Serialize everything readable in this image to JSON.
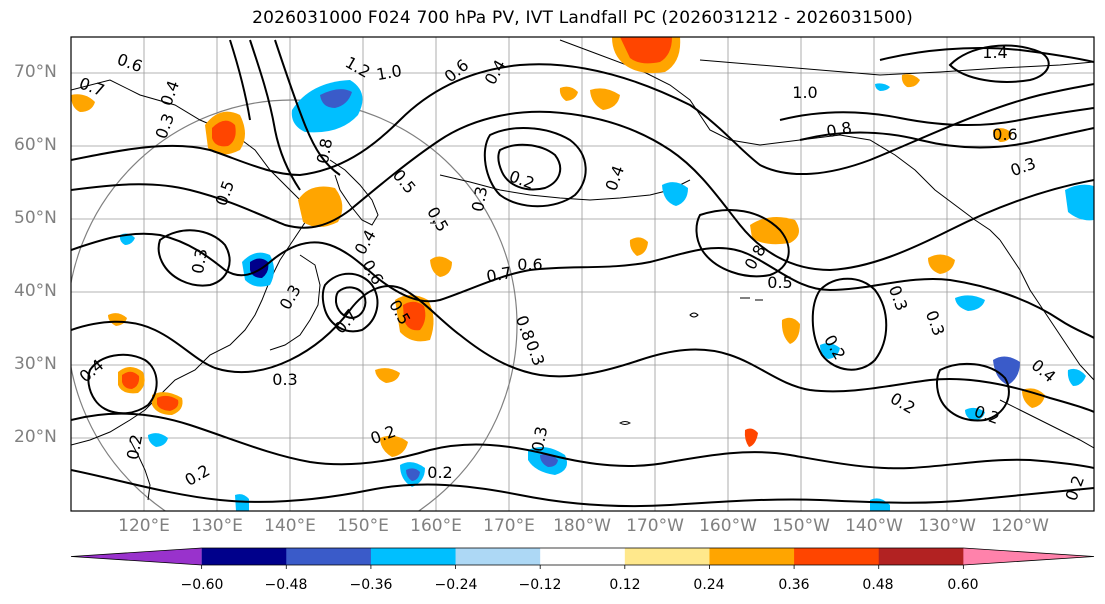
{
  "title": "2026031000 F024 700 hPa PV, IVT Landfall PC (2026031212 - 2026031500)",
  "lat_labels": [
    "70°N",
    "60°N",
    "50°N",
    "40°N",
    "30°N",
    "20°N"
  ],
  "lon_labels": [
    "120°E",
    "130°E",
    "140°E",
    "150°E",
    "160°E",
    "170°E",
    "180°W",
    "170°W",
    "160°W",
    "150°W",
    "140°W",
    "130°W",
    "120°W"
  ],
  "colorbar": {
    "tick_labels": [
      "−0.60",
      "−0.48",
      "−0.36",
      "−0.24",
      "−0.12",
      "0.12",
      "0.24",
      "0.36",
      "0.48",
      "0.60"
    ],
    "colors": [
      "#9932CC",
      "#00008B",
      "#3A5BC9",
      "#00BFFF",
      "#ADD8F5",
      "#FFFFFF",
      "#FFE88C",
      "#FFA500",
      "#FF4500",
      "#B22222",
      "#FF82AB"
    ]
  },
  "contour_labels": [
    "0.6",
    "0.7",
    "0.4",
    "0.3",
    "1.2",
    "1.0",
    "0.6",
    "0.4",
    "0.5",
    "0.5",
    "0.8",
    "0.3",
    "0.2",
    "0.4",
    "0.3",
    "0.5",
    "0.4",
    "0.3",
    "0.6",
    "0.7",
    "0.5",
    "0.7",
    "0.6",
    "0.8",
    "0.3",
    "1.0",
    "0.8",
    "1.4",
    "0.6",
    "0.3",
    "0.8",
    "0.5",
    "0.3",
    "0.3",
    "0.2",
    "0.4",
    "0.2",
    "0.2",
    "0.2",
    "0.3",
    "0.4",
    "0.2",
    "0.3",
    "0.2",
    "0.2",
    "0.2"
  ]
}
